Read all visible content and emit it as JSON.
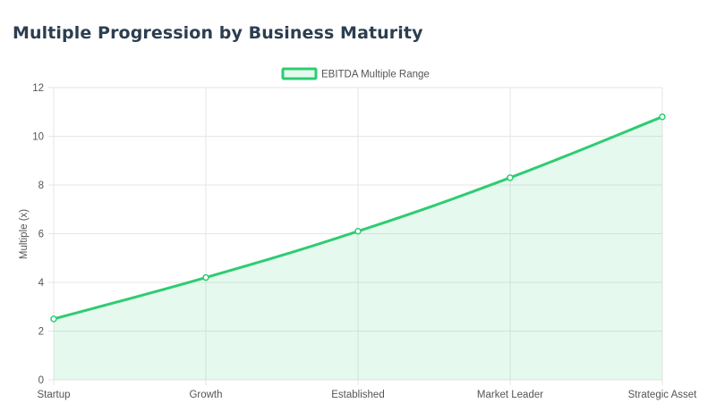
{
  "header": {
    "title": "Multiple Progression by Business Maturity"
  },
  "chart_data": {
    "type": "area",
    "categories": [
      "Startup",
      "Growth",
      "Established",
      "Market Leader",
      "Strategic Asset"
    ],
    "series": [
      {
        "name": "EBITDA Multiple Range",
        "values": [
          2.5,
          4.2,
          6.1,
          8.3,
          10.8
        ],
        "color": "#2ecc71",
        "fill": "rgba(46, 204, 113, 0.12)"
      }
    ],
    "ylabel": "Multiple (x)",
    "xlabel": "",
    "ylim": [
      0,
      12
    ],
    "yticks": [
      "0",
      "2",
      "4",
      "6",
      "8",
      "10",
      "12"
    ],
    "grid": true,
    "legend": "top-center"
  },
  "colors": {
    "title": "#2c3e50",
    "grid": "#e6e6e6",
    "line": "#2ecc71"
  }
}
